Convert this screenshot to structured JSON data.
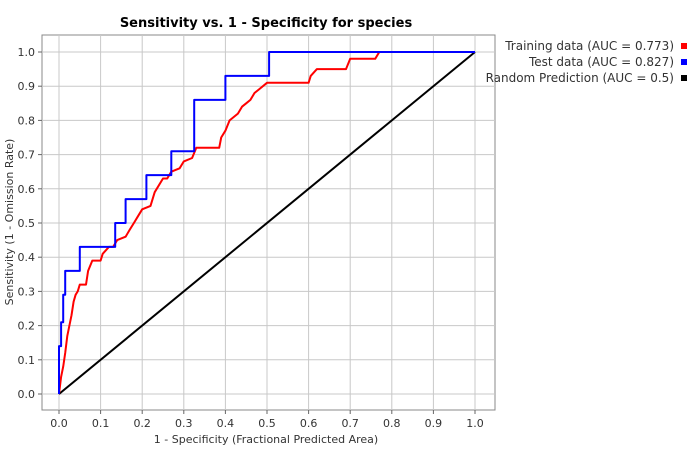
{
  "chart_data": {
    "type": "line",
    "title": "Sensitivity vs. 1 - Specificity for species",
    "xlabel": "1 - Specificity  (Fractional Predicted Area)",
    "ylabel": "Sensitivity  (1 - Omission Rate)",
    "xlim": [
      0,
      1
    ],
    "ylim": [
      0,
      1
    ],
    "x_ticks": [
      "0.0",
      "0.1",
      "0.2",
      "0.3",
      "0.4",
      "0.5",
      "0.6",
      "0.7",
      "0.8",
      "0.9",
      "1.0"
    ],
    "y_ticks": [
      "0.0",
      "0.1",
      "0.2",
      "0.3",
      "0.4",
      "0.5",
      "0.6",
      "0.7",
      "0.8",
      "0.9",
      "1.0"
    ],
    "grid": true,
    "legend": "right",
    "series": [
      {
        "name": "Training data (AUC = 0.773)",
        "color": "#ff0000",
        "step": false,
        "points": [
          [
            0,
            0
          ],
          [
            0.005,
            0.05
          ],
          [
            0.01,
            0.08
          ],
          [
            0.015,
            0.12
          ],
          [
            0.02,
            0.17
          ],
          [
            0.025,
            0.2
          ],
          [
            0.03,
            0.23
          ],
          [
            0.035,
            0.27
          ],
          [
            0.04,
            0.29
          ],
          [
            0.045,
            0.3
          ],
          [
            0.05,
            0.32
          ],
          [
            0.065,
            0.32
          ],
          [
            0.07,
            0.36
          ],
          [
            0.08,
            0.39
          ],
          [
            0.1,
            0.39
          ],
          [
            0.105,
            0.41
          ],
          [
            0.12,
            0.43
          ],
          [
            0.13,
            0.43
          ],
          [
            0.14,
            0.45
          ],
          [
            0.16,
            0.46
          ],
          [
            0.17,
            0.48
          ],
          [
            0.18,
            0.5
          ],
          [
            0.19,
            0.52
          ],
          [
            0.2,
            0.54
          ],
          [
            0.22,
            0.55
          ],
          [
            0.23,
            0.59
          ],
          [
            0.25,
            0.63
          ],
          [
            0.26,
            0.63
          ],
          [
            0.27,
            0.65
          ],
          [
            0.29,
            0.66
          ],
          [
            0.3,
            0.68
          ],
          [
            0.32,
            0.69
          ],
          [
            0.33,
            0.72
          ],
          [
            0.385,
            0.72
          ],
          [
            0.39,
            0.75
          ],
          [
            0.4,
            0.77
          ],
          [
            0.41,
            0.8
          ],
          [
            0.43,
            0.82
          ],
          [
            0.44,
            0.84
          ],
          [
            0.45,
            0.85
          ],
          [
            0.46,
            0.86
          ],
          [
            0.47,
            0.88
          ],
          [
            0.48,
            0.89
          ],
          [
            0.5,
            0.91
          ],
          [
            0.6,
            0.91
          ],
          [
            0.605,
            0.93
          ],
          [
            0.62,
            0.95
          ],
          [
            0.69,
            0.95
          ],
          [
            0.7,
            0.98
          ],
          [
            0.76,
            0.98
          ],
          [
            0.77,
            1.0
          ],
          [
            1,
            1.0
          ]
        ]
      },
      {
        "name": "Test data (AUC = 0.827)",
        "color": "#0000ff",
        "step": true,
        "points": [
          [
            0,
            0
          ],
          [
            0,
            0.14
          ],
          [
            0.005,
            0.14
          ],
          [
            0.005,
            0.21
          ],
          [
            0.01,
            0.21
          ],
          [
            0.01,
            0.29
          ],
          [
            0.015,
            0.29
          ],
          [
            0.015,
            0.36
          ],
          [
            0.05,
            0.36
          ],
          [
            0.05,
            0.43
          ],
          [
            0.135,
            0.43
          ],
          [
            0.135,
            0.5
          ],
          [
            0.16,
            0.5
          ],
          [
            0.16,
            0.57
          ],
          [
            0.21,
            0.57
          ],
          [
            0.21,
            0.64
          ],
          [
            0.27,
            0.64
          ],
          [
            0.27,
            0.71
          ],
          [
            0.325,
            0.71
          ],
          [
            0.325,
            0.86
          ],
          [
            0.4,
            0.86
          ],
          [
            0.4,
            0.93
          ],
          [
            0.505,
            0.93
          ],
          [
            0.505,
            1.0
          ],
          [
            1,
            1.0
          ]
        ]
      },
      {
        "name": "Random Prediction (AUC = 0.5)",
        "color": "#000000",
        "step": false,
        "points": [
          [
            0,
            0
          ],
          [
            1,
            1
          ]
        ]
      }
    ]
  }
}
